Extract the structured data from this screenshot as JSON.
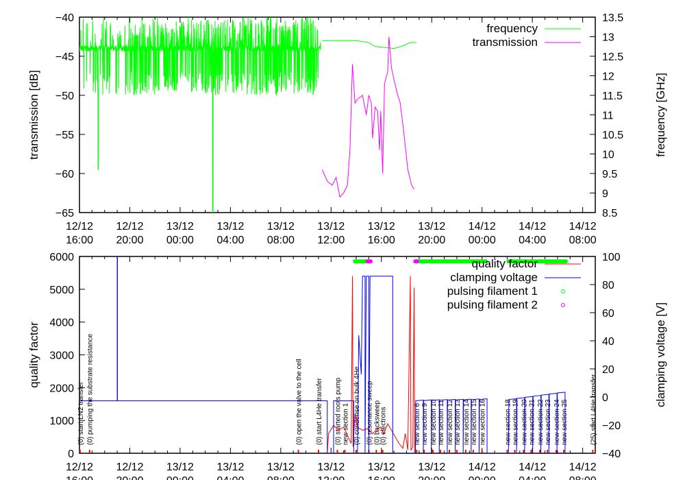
{
  "chart_data": [
    {
      "type": "line",
      "panel": "top",
      "xlabel": "",
      "ylabel": "transmission [dB]",
      "y2label": "frequency [GHz]",
      "xlim_hours_from_12-12_16:00": [
        0,
        41
      ],
      "ylim": [
        -65,
        -40
      ],
      "y2lim": [
        8.5,
        13.5
      ],
      "yticks": [
        "-65",
        "-60",
        "-55",
        "-50",
        "-45",
        "-40"
      ],
      "y2ticks": [
        "8.5",
        "9",
        "9.5",
        "10",
        "10.5",
        "11",
        "11.5",
        "12",
        "12.5",
        "13",
        "13.5"
      ],
      "xticks": [
        {
          "h": 0,
          "d": "12/12",
          "t": "16:00"
        },
        {
          "h": 4,
          "d": "12/12",
          "t": "20:00"
        },
        {
          "h": 8,
          "d": "13/12",
          "t": "00:00"
        },
        {
          "h": 12,
          "d": "13/12",
          "t": "04:00"
        },
        {
          "h": 16,
          "d": "13/12",
          "t": "08:00"
        },
        {
          "h": 20,
          "d": "13/12",
          "t": "12:00"
        },
        {
          "h": 24,
          "d": "13/12",
          "t": "16:00"
        },
        {
          "h": 28,
          "d": "13/12",
          "t": "20:00"
        },
        {
          "h": 32,
          "d": "14/12",
          "t": "00:00"
        },
        {
          "h": 36,
          "d": "14/12",
          "t": "04:00"
        },
        {
          "h": 40,
          "d": "14/12",
          "t": "08:00"
        }
      ],
      "legend_position": "top-right",
      "series": [
        {
          "name": "frequency",
          "axis": "y2",
          "color": "#00ff00",
          "noise_band": {
            "from": 0,
            "to": 19.2,
            "base": 12.7,
            "low": 11.5,
            "high": 13.5
          },
          "outliers": [
            [
              1.5,
              9.6
            ],
            [
              10.6,
              8.5
            ]
          ],
          "points": [
            [
              19.3,
              12.9
            ],
            [
              22,
              12.9
            ],
            [
              23,
              12.85
            ],
            [
              23.5,
              12.75
            ],
            [
              25,
              12.7
            ],
            [
              25.6,
              12.75
            ],
            [
              26.3,
              12.85
            ],
            [
              26.8,
              12.85
            ]
          ]
        },
        {
          "name": "transmission",
          "axis": "y",
          "color": "#ff00ff",
          "points": [
            [
              19.3,
              -59.5
            ],
            [
              19.7,
              -61
            ],
            [
              20.1,
              -61.5
            ],
            [
              20.4,
              -60.5
            ],
            [
              20.7,
              -63
            ],
            [
              21.0,
              -62.5
            ],
            [
              21.3,
              -61.5
            ],
            [
              21.5,
              -57
            ],
            [
              21.7,
              -46
            ],
            [
              21.9,
              -51
            ],
            [
              22.1,
              -50.5
            ],
            [
              22.5,
              -50
            ],
            [
              22.8,
              -52.5
            ],
            [
              23.0,
              -50
            ],
            [
              23.2,
              -51
            ],
            [
              23.3,
              -55.5
            ],
            [
              23.5,
              -51.5
            ],
            [
              23.7,
              -52
            ],
            [
              23.85,
              -57
            ],
            [
              23.95,
              -52
            ],
            [
              24.1,
              -60
            ],
            [
              24.25,
              -48.5
            ],
            [
              24.5,
              -47
            ],
            [
              24.6,
              -42.5
            ],
            [
              24.8,
              -46.5
            ],
            [
              25.0,
              -48
            ],
            [
              25.3,
              -50
            ],
            [
              25.5,
              -51
            ],
            [
              25.8,
              -55
            ],
            [
              26.1,
              -59.5
            ],
            [
              26.4,
              -61.5
            ],
            [
              26.6,
              -62
            ]
          ]
        }
      ]
    },
    {
      "type": "line",
      "panel": "bottom",
      "ylabel": "quality factor",
      "y2label": "clamping voltage [V]",
      "ylim": [
        0,
        6000
      ],
      "y2lim": [
        -40,
        110
      ],
      "yticks": [
        "0",
        "1000",
        "2000",
        "3000",
        "4000",
        "5000",
        "6000"
      ],
      "y2ticks": [
        "-40",
        "-20",
        "0",
        "20",
        "40",
        "60",
        "80",
        "100"
      ],
      "legend_position": "top-right",
      "series": [
        {
          "name": "quality factor",
          "axis": "y",
          "color": "#ff0000",
          "points": [
            [
              19.7,
              0
            ],
            [
              19.8,
              600
            ],
            [
              20.2,
              850
            ],
            [
              20.6,
              700
            ],
            [
              21.0,
              800
            ],
            [
              21.3,
              550
            ],
            [
              21.6,
              300
            ],
            [
              21.7,
              5400
            ],
            [
              21.75,
              200
            ],
            [
              21.9,
              1200
            ],
            [
              22.1,
              800
            ],
            [
              22.5,
              700
            ],
            [
              22.9,
              750
            ],
            [
              23.3,
              600
            ],
            [
              23.6,
              700
            ],
            [
              23.9,
              800
            ],
            [
              24.2,
              600
            ],
            [
              24.5,
              900
            ],
            [
              24.8,
              700
            ],
            [
              25.1,
              500
            ],
            [
              25.4,
              300
            ],
            [
              25.7,
              150
            ],
            [
              25.9,
              600
            ],
            [
              26.1,
              100
            ],
            [
              26.3,
              5400
            ],
            [
              26.35,
              100
            ],
            [
              26.5,
              200
            ],
            [
              26.6,
              5050
            ],
            [
              26.65,
              0
            ]
          ]
        },
        {
          "name": "clamping voltage",
          "axis": "y2",
          "color": "#0000ff",
          "points": [
            [
              0,
              0
            ],
            [
              3,
              0
            ],
            [
              3,
              110
            ],
            [
              3.02,
              110
            ],
            [
              3.02,
              0
            ],
            [
              19.7,
              0
            ],
            [
              19.7,
              -40
            ],
            [
              20.2,
              -40
            ],
            [
              20.2,
              0
            ],
            [
              21.8,
              0
            ],
            [
              21.8,
              -40
            ],
            [
              22.1,
              -40
            ],
            [
              22.2,
              50
            ],
            [
              22.4,
              20
            ],
            [
              22.5,
              95
            ],
            [
              22.7,
              95
            ],
            [
              22.7,
              -40
            ],
            [
              22.8,
              95
            ],
            [
              23,
              95
            ],
            [
              23,
              -40
            ],
            [
              23.1,
              95
            ],
            [
              24.9,
              95
            ],
            [
              24.9,
              -40
            ]
          ],
          "sawtooth": [
            {
              "from": 26.7,
              "to": 32.4,
              "teeth": 9,
              "top_start": 0,
              "top_end": 1
            },
            {
              "from": 34.1,
              "to": 38.6,
              "teeth": 7,
              "top_start": 1,
              "top_end": 6
            }
          ]
        },
        {
          "name": "pulsing filament 1",
          "axis": "y",
          "color": "#00ff00",
          "marker": "circle",
          "ranges": [
            [
              21.9,
              23.0
            ],
            [
              26.9,
              32.4
            ],
            [
              34.1,
              38.7
            ]
          ],
          "value": 5850
        },
        {
          "name": "pulsing filament 2",
          "axis": "y",
          "color": "#ff00ff",
          "marker": "circle",
          "ranges": [
            [
              22.9,
              23.2
            ],
            [
              26.7,
              26.9
            ]
          ],
          "value": 5850
        }
      ],
      "annotations": [
        {
          "h": 0.05,
          "text": "(0) start LN2 transfer"
        },
        {
          "h": 0.8,
          "text": "(0) pumping the substrate resistance"
        },
        {
          "h": 17.4,
          "text": "(0) open the valve to the cell"
        },
        {
          "h": 19.0,
          "text": "(0) start L4He transfer"
        },
        {
          "h": 20.5,
          "text": "(0) started roots pump"
        },
        {
          "h": 21.1,
          "text": "new section 1"
        },
        {
          "h": 22.0,
          "text": "(0) condense on bulk 4He"
        },
        {
          "h": 23.0,
          "text": "(0) resonance sweep"
        },
        {
          "h": 23.6,
          "text": "(0) backsweep"
        },
        {
          "h": 24.1,
          "text": "(0) electrons"
        },
        {
          "h": 26.8,
          "text": "new section 6"
        },
        {
          "h": 27.4,
          "text": "new section 9"
        },
        {
          "h": 28.1,
          "text": "new section 10"
        },
        {
          "h": 28.7,
          "text": "new section 11"
        },
        {
          "h": 29.4,
          "text": "new section 12"
        },
        {
          "h": 30.0,
          "text": "new section 13"
        },
        {
          "h": 30.7,
          "text": "new section 14"
        },
        {
          "h": 31.3,
          "text": "new section 15"
        },
        {
          "h": 32.0,
          "text": "new section 16"
        },
        {
          "h": 34.0,
          "text": "new section 18"
        },
        {
          "h": 34.6,
          "text": "new section 19"
        },
        {
          "h": 35.3,
          "text": "new section 20"
        },
        {
          "h": 35.9,
          "text": "new section 21"
        },
        {
          "h": 36.6,
          "text": "new section 22"
        },
        {
          "h": 37.2,
          "text": "new section 23"
        },
        {
          "h": 37.9,
          "text": "new section 24"
        },
        {
          "h": 38.5,
          "text": "new section 25"
        },
        {
          "h": 40.8,
          "text": "(25) start L4He transfer"
        }
      ]
    }
  ]
}
